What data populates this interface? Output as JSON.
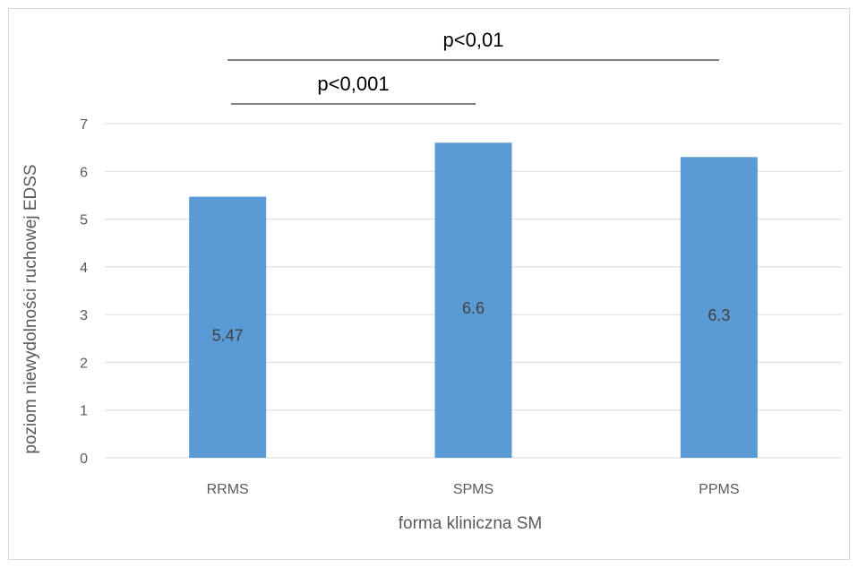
{
  "chart_data": {
    "type": "bar",
    "categories": [
      "RRMS",
      "SPMS",
      "PPMS"
    ],
    "values": [
      5.47,
      6.6,
      6.3
    ],
    "data_labels": [
      "5.47",
      "6.6",
      "6.3"
    ],
    "xlabel": "forma kliniczna SM",
    "ylabel": "poziom niewydolności ruchowej EDSS",
    "ylim": [
      0,
      7
    ],
    "yticks": [
      "0",
      "1",
      "2",
      "3",
      "4",
      "5",
      "6",
      "7"
    ],
    "grid": true,
    "legend": "none",
    "annotations": [
      {
        "text": "p<0,01",
        "from": "RRMS",
        "to": "PPMS"
      },
      {
        "text": "p<0,001",
        "from": "RRMS",
        "to": "SPMS"
      }
    ],
    "colors": {
      "bar": "#5b9bd5",
      "grid": "#d9d9d9",
      "text": "#595959"
    }
  }
}
